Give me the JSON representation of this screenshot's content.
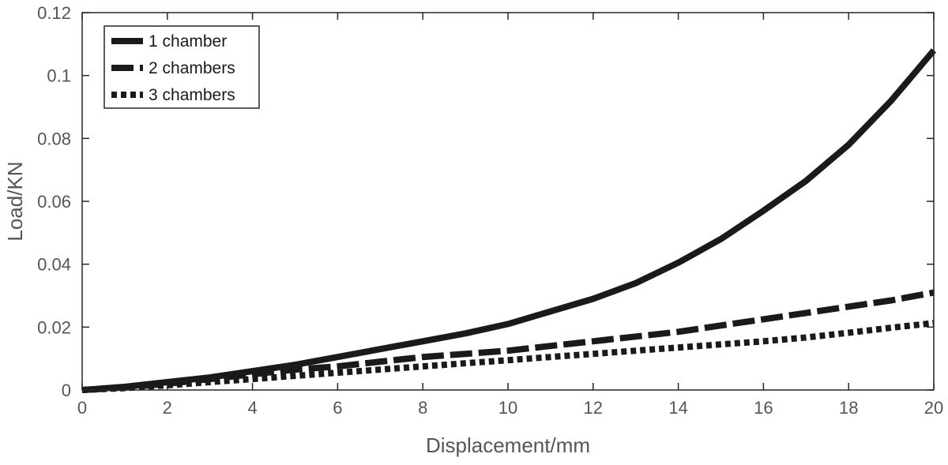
{
  "chart_data": {
    "type": "line",
    "title": "",
    "xlabel": "Displacement/mm",
    "ylabel": "Load/KN",
    "xlim": [
      0,
      20
    ],
    "ylim": [
      0,
      0.12
    ],
    "xticks": [
      0,
      2,
      4,
      6,
      8,
      10,
      12,
      14,
      16,
      18,
      20
    ],
    "xtick_labels": [
      "0",
      "2",
      "4",
      "6",
      "8",
      "10",
      "12",
      "14",
      "16",
      "18",
      "20"
    ],
    "yticks": [
      0,
      0.02,
      0.04,
      0.06,
      0.08,
      0.1,
      0.12
    ],
    "ytick_labels": [
      "0",
      "0.02",
      "0.04",
      "0.06",
      "0.08",
      "0.1",
      "0.12"
    ],
    "grid": false,
    "legend_position": "top-left",
    "x": [
      0,
      1,
      2,
      3,
      4,
      5,
      6,
      7,
      8,
      9,
      10,
      11,
      12,
      13,
      14,
      15,
      16,
      17,
      18,
      19,
      20
    ],
    "series": [
      {
        "name": "1 chamber",
        "style": "solid",
        "values": [
          0,
          0.001,
          0.0025,
          0.004,
          0.006,
          0.008,
          0.0105,
          0.013,
          0.0155,
          0.018,
          0.021,
          0.025,
          0.029,
          0.034,
          0.0405,
          0.048,
          0.057,
          0.0665,
          0.078,
          0.092,
          0.108
        ]
      },
      {
        "name": "2 chambers",
        "style": "dashed",
        "values": [
          0,
          0.0008,
          0.002,
          0.0035,
          0.005,
          0.0065,
          0.0075,
          0.009,
          0.0105,
          0.0115,
          0.0125,
          0.014,
          0.0155,
          0.017,
          0.0185,
          0.0205,
          0.0225,
          0.0245,
          0.0265,
          0.0285,
          0.031
        ]
      },
      {
        "name": "3 chambers",
        "style": "dotted",
        "values": [
          0,
          0.0006,
          0.0015,
          0.0025,
          0.0035,
          0.0045,
          0.0055,
          0.0065,
          0.0075,
          0.0085,
          0.0095,
          0.0105,
          0.0115,
          0.0125,
          0.0135,
          0.0145,
          0.0155,
          0.0167,
          0.0182,
          0.0198,
          0.0213
        ]
      }
    ],
    "line_color": "#1a1a1a"
  }
}
